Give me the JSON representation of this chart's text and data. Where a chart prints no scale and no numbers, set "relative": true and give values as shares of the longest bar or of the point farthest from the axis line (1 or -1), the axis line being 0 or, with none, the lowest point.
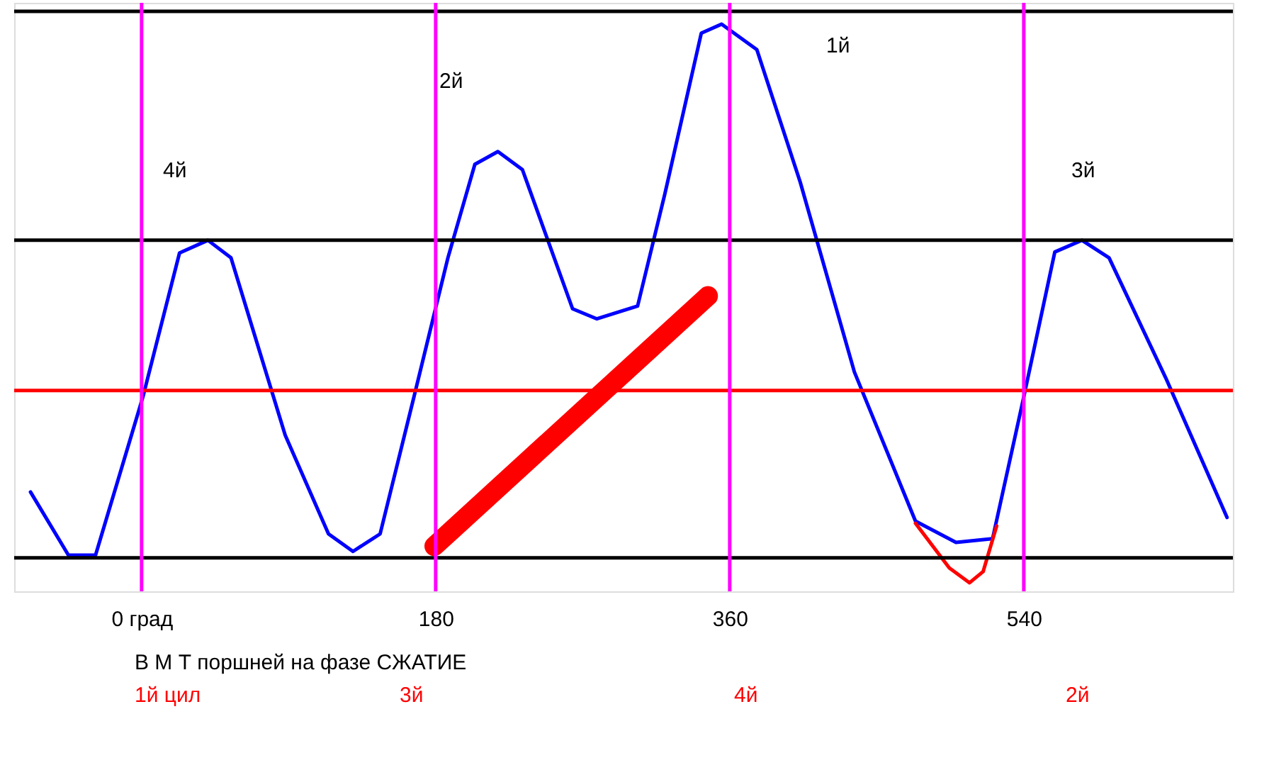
{
  "chart_data": {
    "type": "line",
    "relative": true,
    "marker": "none",
    "line_style": "solid",
    "xlim": [
      -78,
      668
    ],
    "xticks": [
      {
        "value": 0,
        "label": "0 град"
      },
      180,
      360,
      540
    ],
    "series": [
      {
        "color": "#0000ff",
        "x": [
          -68,
          -44.8,
          -28.2,
          0.8,
          23.2,
          40.6,
          54.7,
          87.9,
          114.4,
          129.4,
          146,
          166.7,
          187.5,
          204,
          218.1,
          233.1,
          263.8,
          278.7,
          303.6,
          320.2,
          342.6,
          355,
          376.6,
          403.2,
          436.3,
          473.7,
          498.5,
          520.9,
          540,
          559,
          575.6,
          592.2,
          627,
          664.4
        ],
        "values": [
          0.119,
          0,
          0,
          0.298,
          0.569,
          0.593,
          0.56,
          0.226,
          0.04,
          0.007,
          0.04,
          0.298,
          0.56,
          0.736,
          0.76,
          0.726,
          0.464,
          0.445,
          0.469,
          0.679,
          0.983,
          1,
          0.952,
          0.702,
          0.345,
          0.064,
          0.024,
          0.031,
          0.298,
          0.571,
          0.593,
          0.56,
          0.333,
          0.071
        ]
      },
      {
        "color": "#ff0000",
        "type": "line",
        "x": [
          179.2,
          346.7
        ],
        "values": [
          0.017,
          0.488
        ]
      },
      {
        "color": "#ff0000",
        "type": "line",
        "x": [
          473.7,
          494.4,
          506.8,
          515.1,
          523.4
        ],
        "values": [
          0.06,
          -0.024,
          -0.052,
          -0.031,
          0.055
        ]
      }
    ],
    "ref_lines": [
      {
        "axis": "y",
        "value": -0.005,
        "color": "#000000"
      },
      {
        "axis": "y",
        "value": 0.593,
        "color": "#000000"
      },
      {
        "axis": "y",
        "value": 1.024,
        "color": "#000000"
      },
      {
        "axis": "y",
        "value": 0.31,
        "color": "#ff0000"
      },
      {
        "axis": "x",
        "value": 0,
        "color": "#ff00ff"
      },
      {
        "axis": "x",
        "value": 180,
        "color": "#ff00ff"
      },
      {
        "axis": "x",
        "value": 360,
        "color": "#ff00ff"
      },
      {
        "axis": "x",
        "value": 540,
        "color": "#ff00ff"
      }
    ],
    "annotations": [
      "4й",
      "2й",
      "1й",
      "3й",
      "В М Т поршней на фазе СЖАТИЕ",
      "1й цил",
      "3й",
      "4й",
      "2й"
    ]
  }
}
